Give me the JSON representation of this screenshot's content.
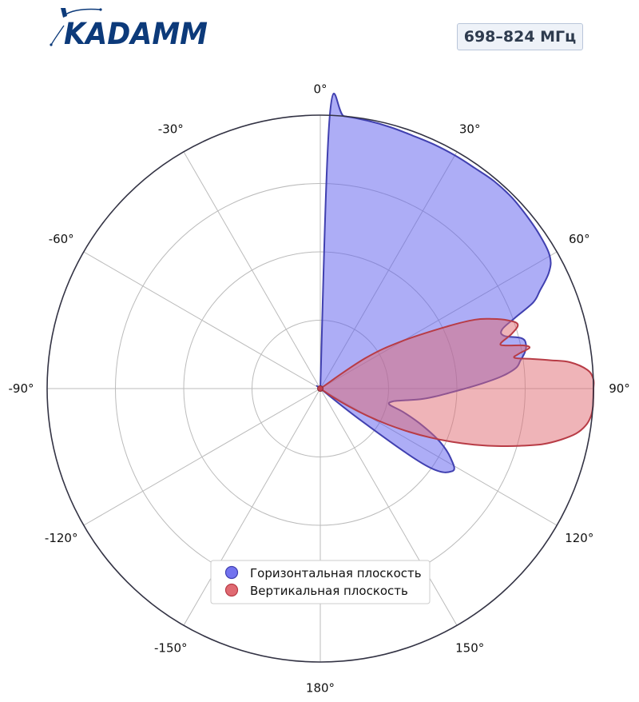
{
  "logo": {
    "text": "KADAMM",
    "color": "#0c3a7a"
  },
  "badge": {
    "text": "698–824 МГц"
  },
  "chart_data": {
    "type": "polar-area",
    "angle_tick_labels": [
      "0°",
      "30°",
      "60°",
      "90°",
      "120°",
      "150°",
      "180°",
      "-150°",
      "-120°",
      "-90°",
      "-60°",
      "-30°"
    ],
    "angle_ticks_deg": [
      0,
      30,
      60,
      90,
      120,
      150,
      180,
      -150,
      -120,
      -90,
      -60,
      -30
    ],
    "rlim": [
      0,
      1
    ],
    "grid": true,
    "legend_position": "bottom-center",
    "series": [
      {
        "name": "Горизонтальная плоскость",
        "color": "#5b5bee",
        "edge": "#4040b0",
        "angles_deg": [
          0,
          2,
          5,
          10,
          15,
          20,
          25,
          30,
          35,
          40,
          45,
          50,
          55,
          60,
          63,
          66,
          68,
          70,
          72,
          74,
          76,
          78,
          80,
          82,
          84,
          86,
          88,
          90,
          92,
          94,
          96,
          98,
          100,
          103,
          106,
          110,
          114,
          118,
          122,
          126,
          128,
          128,
          0
        ],
        "r": [
          0,
          1.0,
          1.0,
          0.995,
          0.99,
          0.985,
          0.985,
          0.985,
          0.985,
          0.99,
          0.99,
          0.985,
          0.98,
          0.97,
          0.94,
          0.88,
          0.84,
          0.76,
          0.7,
          0.7,
          0.76,
          0.77,
          0.76,
          0.74,
          0.72,
          0.67,
          0.6,
          0.53,
          0.47,
          0.42,
          0.37,
          0.31,
          0.27,
          0.26,
          0.32,
          0.4,
          0.48,
          0.54,
          0.57,
          0.48,
          0.2,
          0,
          0
        ]
      },
      {
        "name": "Вертикальная плоскость",
        "color": "#e06a72",
        "edge": "#b83c46",
        "angles_deg": [
          0,
          56,
          60,
          64,
          66,
          68,
          70,
          72,
          74,
          76,
          77,
          78,
          79,
          80,
          81,
          82,
          83,
          84,
          86,
          88,
          90,
          92,
          94,
          96,
          98,
          100,
          102,
          104,
          106,
          108,
          110,
          112,
          114,
          116,
          118,
          120,
          122,
          124,
          0
        ],
        "r": [
          0,
          0.2,
          0.35,
          0.52,
          0.62,
          0.68,
          0.73,
          0.76,
          0.73,
          0.68,
          0.7,
          0.76,
          0.78,
          0.74,
          0.72,
          0.78,
          0.85,
          0.92,
          0.98,
          1.0,
          1.0,
          1.0,
          1.0,
          0.995,
          0.98,
          0.95,
          0.9,
          0.84,
          0.76,
          0.68,
          0.6,
          0.52,
          0.44,
          0.36,
          0.28,
          0.2,
          0.12,
          0.05,
          0
        ]
      }
    ]
  }
}
